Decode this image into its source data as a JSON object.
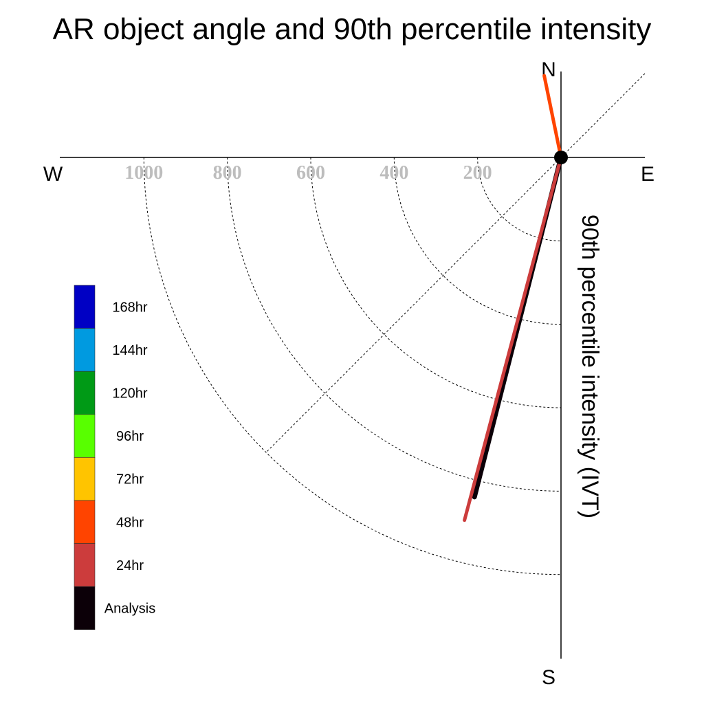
{
  "chart_data": {
    "type": "polar-line",
    "title": "AR object angle and 90th percentile intensity",
    "directions": {
      "north": "N",
      "south": "S",
      "east": "E",
      "west": "W"
    },
    "radial_axis_label": "90th percentile intensity (IVT)",
    "radial_ticks": [
      "1000",
      "800",
      "600",
      "400",
      "200"
    ],
    "radial_tick_values": [
      1000,
      800,
      600,
      400,
      200
    ],
    "radial_range": [
      0,
      1000
    ],
    "grid": true,
    "legend_position": "left",
    "legend": [
      {
        "label": "168hr",
        "color": "#0000c4"
      },
      {
        "label": "144hr",
        "color": "#009ae0"
      },
      {
        "label": "120hr",
        "color": "#009a16"
      },
      {
        "label": "96hr",
        "color": "#58ff00"
      },
      {
        "label": "72hr",
        "color": "#ffc400"
      },
      {
        "label": "48hr",
        "color": "#ff4400"
      },
      {
        "label": "24hr",
        "color": "#cc3c3c"
      },
      {
        "label": "Analysis",
        "color": "#0c0008"
      }
    ],
    "series": [
      {
        "name": "Analysis",
        "color": "#0c0008",
        "bearing_deg": 194.3,
        "intensity": 840
      },
      {
        "name": "24hr",
        "color": "#cc3c3c",
        "bearing_deg": 194.9,
        "intensity": 900
      },
      {
        "name": "48hr",
        "color": "#ff4400",
        "bearing_deg": 348.4,
        "intensity": 200
      }
    ]
  }
}
